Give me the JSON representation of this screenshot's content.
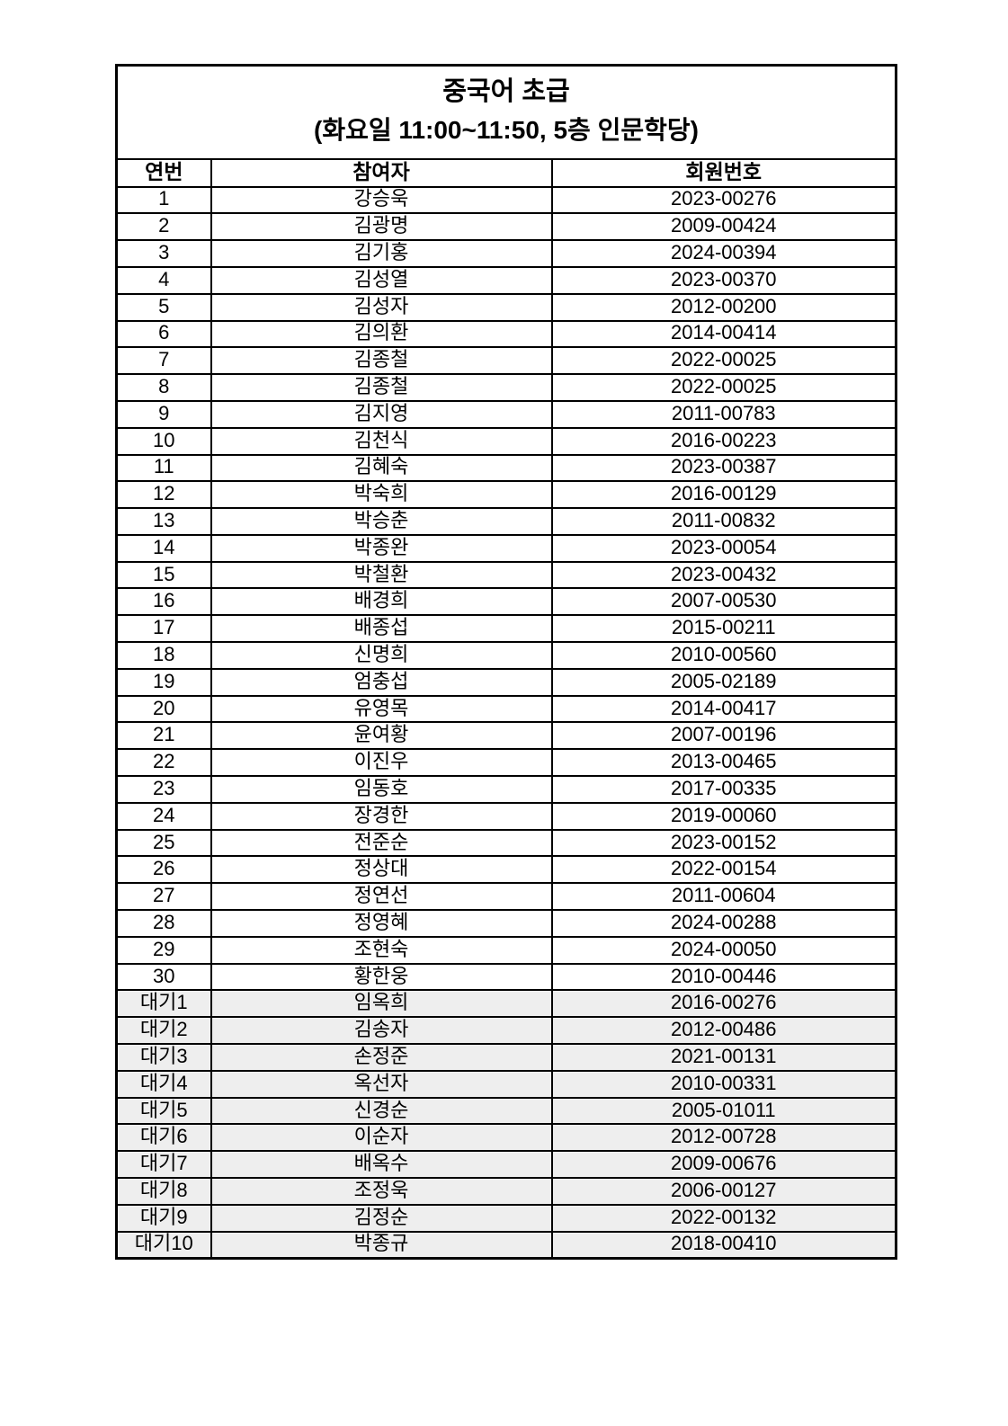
{
  "document": {
    "title": "중국어 초급",
    "subtitle": "(화요일 11:00~11:50, 5층 인문학당)"
  },
  "table": {
    "columns": [
      "연번",
      "참여자",
      "회원번호"
    ],
    "rows": [
      {
        "no": "1",
        "name": "강승욱",
        "member_no": "2023-00276",
        "waitlist": false
      },
      {
        "no": "2",
        "name": "김광명",
        "member_no": "2009-00424",
        "waitlist": false
      },
      {
        "no": "3",
        "name": "김기홍",
        "member_no": "2024-00394",
        "waitlist": false
      },
      {
        "no": "4",
        "name": "김성열",
        "member_no": "2023-00370",
        "waitlist": false
      },
      {
        "no": "5",
        "name": "김성자",
        "member_no": "2012-00200",
        "waitlist": false
      },
      {
        "no": "6",
        "name": "김의환",
        "member_no": "2014-00414",
        "waitlist": false
      },
      {
        "no": "7",
        "name": "김종철",
        "member_no": "2022-00025",
        "waitlist": false
      },
      {
        "no": "8",
        "name": "김종철",
        "member_no": "2022-00025",
        "waitlist": false
      },
      {
        "no": "9",
        "name": "김지영",
        "member_no": "2011-00783",
        "waitlist": false
      },
      {
        "no": "10",
        "name": "김천식",
        "member_no": "2016-00223",
        "waitlist": false
      },
      {
        "no": "11",
        "name": "김혜숙",
        "member_no": "2023-00387",
        "waitlist": false
      },
      {
        "no": "12",
        "name": "박숙희",
        "member_no": "2016-00129",
        "waitlist": false
      },
      {
        "no": "13",
        "name": "박승춘",
        "member_no": "2011-00832",
        "waitlist": false
      },
      {
        "no": "14",
        "name": "박종완",
        "member_no": "2023-00054",
        "waitlist": false
      },
      {
        "no": "15",
        "name": "박철환",
        "member_no": "2023-00432",
        "waitlist": false
      },
      {
        "no": "16",
        "name": "배경희",
        "member_no": "2007-00530",
        "waitlist": false
      },
      {
        "no": "17",
        "name": "배종섭",
        "member_no": "2015-00211",
        "waitlist": false
      },
      {
        "no": "18",
        "name": "신명희",
        "member_no": "2010-00560",
        "waitlist": false
      },
      {
        "no": "19",
        "name": "엄충섭",
        "member_no": "2005-02189",
        "waitlist": false
      },
      {
        "no": "20",
        "name": "유영목",
        "member_no": "2014-00417",
        "waitlist": false
      },
      {
        "no": "21",
        "name": "윤여황",
        "member_no": "2007-00196",
        "waitlist": false
      },
      {
        "no": "22",
        "name": "이진우",
        "member_no": "2013-00465",
        "waitlist": false
      },
      {
        "no": "23",
        "name": "임동호",
        "member_no": "2017-00335",
        "waitlist": false
      },
      {
        "no": "24",
        "name": "장경한",
        "member_no": "2019-00060",
        "waitlist": false
      },
      {
        "no": "25",
        "name": "전준순",
        "member_no": "2023-00152",
        "waitlist": false
      },
      {
        "no": "26",
        "name": "정상대",
        "member_no": "2022-00154",
        "waitlist": false
      },
      {
        "no": "27",
        "name": "정연선",
        "member_no": "2011-00604",
        "waitlist": false
      },
      {
        "no": "28",
        "name": "정영혜",
        "member_no": "2024-00288",
        "waitlist": false
      },
      {
        "no": "29",
        "name": "조현숙",
        "member_no": "2024-00050",
        "waitlist": false
      },
      {
        "no": "30",
        "name": "황한웅",
        "member_no": "2010-00446",
        "waitlist": false
      },
      {
        "no": "대기1",
        "name": "임옥희",
        "member_no": "2016-00276",
        "waitlist": true
      },
      {
        "no": "대기2",
        "name": "김송자",
        "member_no": "2012-00486",
        "waitlist": true
      },
      {
        "no": "대기3",
        "name": "손정준",
        "member_no": "2021-00131",
        "waitlist": true
      },
      {
        "no": "대기4",
        "name": "옥선자",
        "member_no": "2010-00331",
        "waitlist": true
      },
      {
        "no": "대기5",
        "name": "신경순",
        "member_no": "2005-01011",
        "waitlist": true
      },
      {
        "no": "대기6",
        "name": "이순자",
        "member_no": "2012-00728",
        "waitlist": true
      },
      {
        "no": "대기7",
        "name": "배옥수",
        "member_no": "2009-00676",
        "waitlist": true
      },
      {
        "no": "대기8",
        "name": "조정욱",
        "member_no": "2006-00127",
        "waitlist": true
      },
      {
        "no": "대기9",
        "name": "김정순",
        "member_no": "2022-00132",
        "waitlist": true
      },
      {
        "no": "대기10",
        "name": "박종규",
        "member_no": "2018-00410",
        "waitlist": true
      }
    ]
  },
  "colors": {
    "page_bg": "#ffffff",
    "text": "#000000",
    "border": "#000000",
    "waitlist_row_bg": "#eeeeee"
  }
}
